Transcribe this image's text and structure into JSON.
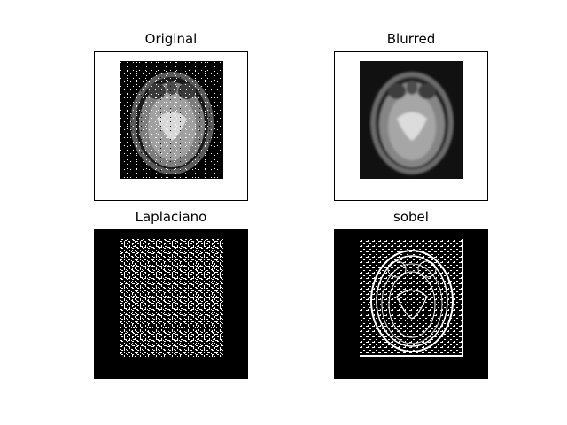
{
  "figure": {
    "panels": [
      {
        "title": "Original",
        "image": "brain-mri-axial-salt-pepper-noise"
      },
      {
        "title": "Blurred",
        "image": "brain-mri-axial-gaussian-blur"
      },
      {
        "title": "Laplaciano",
        "image": "laplacian-edge-map-noisy"
      },
      {
        "title": "sobel",
        "image": "sobel-edge-map"
      }
    ]
  }
}
